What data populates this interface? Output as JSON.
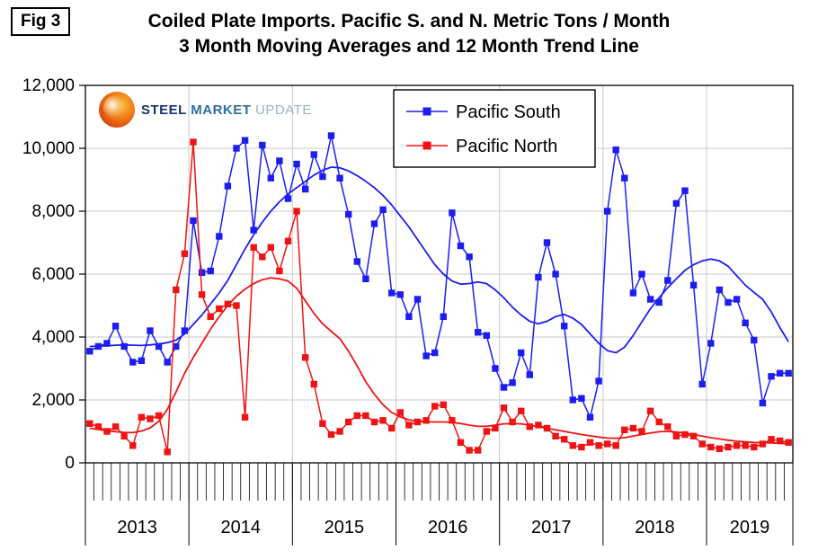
{
  "fig_label": "Fig 3",
  "title_line1": "Coiled Plate Imports. Pacific S. and N. Metric Tons / Month",
  "title_line2": "3 Month Moving Averages and 12 Month Trend Line",
  "logo": {
    "word1": "STEEL",
    "word2": "MARKET",
    "word3": "UPDATE"
  },
  "chart_data": {
    "type": "line",
    "title": "Coiled Plate Imports. Pacific S. and N. Metric Tons / Month",
    "subtitle": "3 Month Moving Averages and 12 Month Trend Line",
    "x_unit": "month",
    "x_start": "2013-01",
    "ylim": [
      0,
      12000
    ],
    "grid": true,
    "grid_color": "#c9c9c9",
    "legend": [
      "Pacific South",
      "Pacific North"
    ],
    "legend_position": "top-center-inside",
    "yticks": [
      {
        "value": 0,
        "label": "0"
      },
      {
        "value": 2000,
        "label": "2,000"
      },
      {
        "value": 4000,
        "label": "4,000"
      },
      {
        "value": 6000,
        "label": "6,000"
      },
      {
        "value": 8000,
        "label": "8,000"
      },
      {
        "value": 10000,
        "label": "10,000"
      },
      {
        "value": 12000,
        "label": "12,000"
      }
    ],
    "years": [
      {
        "label": "2013",
        "months": 12
      },
      {
        "label": "2014",
        "months": 12
      },
      {
        "label": "2015",
        "months": 12
      },
      {
        "label": "2016",
        "months": 12
      },
      {
        "label": "2017",
        "months": 12
      },
      {
        "label": "2018",
        "months": 12
      },
      {
        "label": "2019",
        "months": 10
      }
    ],
    "series": [
      {
        "name": "Pacific South",
        "style": "markers",
        "color": "#1d1df0",
        "values": [
          3550,
          3700,
          3800,
          4350,
          3700,
          3200,
          3250,
          4200,
          3700,
          3200,
          3700,
          4200,
          7700,
          6050,
          6100,
          7200,
          8800,
          10000,
          10250,
          7400,
          10100,
          9050,
          9600,
          8400,
          9500,
          8700,
          9800,
          9100,
          10400,
          9050,
          7900,
          6400,
          5850,
          7600,
          8050,
          5400,
          5350,
          4650,
          5200,
          3400,
          3500,
          4650,
          7950,
          6900,
          6550,
          4150,
          4050,
          3000,
          2400,
          2550,
          3500,
          2800,
          5900,
          7000,
          6000,
          4350,
          2000,
          2050,
          1450,
          2600,
          8000,
          9950,
          9050,
          5400,
          6000,
          5200,
          5100,
          5800,
          8250,
          8650,
          5650,
          2500,
          3800,
          5500,
          5100,
          5200,
          4450,
          3900,
          1900,
          2750,
          2850,
          2850
        ]
      },
      {
        "name": "Pacific North",
        "style": "markers",
        "color": "#ef1313",
        "values": [
          1250,
          1150,
          1000,
          1150,
          850,
          550,
          1450,
          1400,
          1500,
          350,
          5500,
          6650,
          10200,
          5350,
          4650,
          4900,
          5050,
          5000,
          1450,
          6850,
          6550,
          6850,
          6100,
          7050,
          8000,
          3350,
          2500,
          1250,
          900,
          1000,
          1300,
          1500,
          1500,
          1300,
          1350,
          1100,
          1600,
          1200,
          1300,
          1350,
          1800,
          1850,
          1350,
          650,
          400,
          400,
          1000,
          1100,
          1750,
          1300,
          1650,
          1150,
          1200,
          1100,
          850,
          750,
          550,
          500,
          650,
          550,
          600,
          550,
          1050,
          1100,
          1000,
          1650,
          1300,
          1150,
          850,
          900,
          850,
          600,
          500,
          450,
          500,
          550,
          550,
          500,
          600,
          750,
          700,
          650
        ]
      },
      {
        "name": "Pacific South Trend",
        "style": "trend",
        "color": "#1d1df0",
        "values": [
          3700,
          3710,
          3720,
          3740,
          3750,
          3740,
          3730,
          3750,
          3780,
          3820,
          3900,
          4100,
          4400,
          4700,
          5050,
          5400,
          5800,
          6300,
          6800,
          7250,
          7650,
          8000,
          8300,
          8550,
          8750,
          8950,
          9150,
          9300,
          9400,
          9380,
          9280,
          9130,
          8950,
          8750,
          8500,
          8200,
          7850,
          7500,
          7100,
          6700,
          6300,
          6000,
          5780,
          5680,
          5700,
          5750,
          5700,
          5500,
          5250,
          4950,
          4700,
          4500,
          4420,
          4500,
          4650,
          4720,
          4600,
          4400,
          4100,
          3800,
          3570,
          3500,
          3680,
          4050,
          4480,
          4900,
          5250,
          5570,
          5850,
          6120,
          6300,
          6420,
          6480,
          6420,
          6250,
          5950,
          5650,
          5420,
          5200,
          4800,
          4300,
          3850
        ]
      },
      {
        "name": "Pacific North Trend",
        "style": "trend",
        "color": "#ef1313",
        "values": [
          1100,
          1060,
          1020,
          990,
          970,
          960,
          1010,
          1110,
          1320,
          1700,
          2250,
          2850,
          3350,
          3800,
          4250,
          4650,
          5000,
          5300,
          5520,
          5700,
          5820,
          5880,
          5850,
          5780,
          5550,
          5150,
          4750,
          4420,
          4180,
          3950,
          3550,
          3080,
          2580,
          2180,
          1850,
          1600,
          1460,
          1370,
          1320,
          1300,
          1300,
          1300,
          1290,
          1250,
          1200,
          1160,
          1160,
          1200,
          1240,
          1250,
          1240,
          1200,
          1150,
          1100,
          1050,
          1000,
          950,
          900,
          860,
          820,
          790,
          780,
          800,
          850,
          900,
          950,
          990,
          1000,
          980,
          950,
          900,
          850,
          800,
          760,
          720,
          690,
          670,
          650,
          640,
          630,
          620,
          610
        ]
      }
    ]
  }
}
